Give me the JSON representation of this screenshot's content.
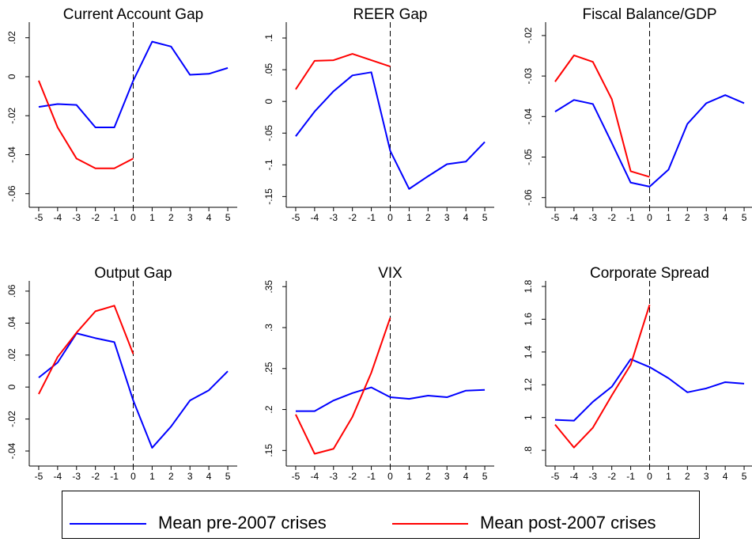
{
  "legend": {
    "entries": [
      {
        "name": "Mean pre-2007 crises",
        "color": "#0000ff"
      },
      {
        "name": "Mean post-2007 crises",
        "color": "#ff0000"
      }
    ]
  },
  "chart_data": [
    {
      "type": "line",
      "title": "Current Account Gap",
      "x": [
        -5,
        -4,
        -3,
        -2,
        -1,
        0,
        1,
        2,
        3,
        4,
        5
      ],
      "xlim": [
        -5.5,
        5.5
      ],
      "xticks": [
        -5,
        -4,
        -3,
        -2,
        -1,
        0,
        1,
        2,
        3,
        4,
        5
      ],
      "xline": 0,
      "ylim": [
        -0.067,
        0.028
      ],
      "yticks": [
        {
          "value": -0.06,
          "label": "-.06"
        },
        {
          "value": -0.04,
          "label": "-.04"
        },
        {
          "value": -0.02,
          "label": "-.02"
        },
        0,
        {
          "value": 0.02,
          "label": ".02"
        }
      ],
      "series": [
        {
          "values": [
            -0.0155,
            -0.014,
            -0.0145,
            -0.026,
            -0.026,
            -0.002,
            0.018,
            0.0155,
            0.001,
            0.0015,
            0.0045
          ]
        },
        {
          "values": [
            -0.002,
            -0.026,
            -0.042,
            -0.047,
            -0.047,
            -0.042,
            null,
            null,
            null,
            null,
            null
          ]
        }
      ]
    },
    {
      "type": "line",
      "title": "REER Gap",
      "x": [
        -5,
        -4,
        -3,
        -2,
        -1,
        0,
        1,
        2,
        3,
        4,
        5
      ],
      "xlim": [
        -5.5,
        5.5
      ],
      "xticks": [
        -5,
        -4,
        -3,
        -2,
        -1,
        0,
        1,
        2,
        3,
        4,
        5
      ],
      "xline": 0,
      "ylim": [
        -0.167,
        0.125
      ],
      "yticks": [
        {
          "value": -0.15,
          "label": "-.15"
        },
        {
          "value": -0.1,
          "label": "-.1"
        },
        {
          "value": -0.05,
          "label": "-.05"
        },
        0,
        {
          "value": 0.05,
          "label": ".05"
        },
        {
          "value": 0.1,
          "label": ".1"
        }
      ],
      "series": [
        {
          "values": [
            -0.055,
            -0.016,
            0.016,
            0.041,
            0.046,
            -0.078,
            -0.138,
            -0.118,
            -0.099,
            -0.095,
            -0.064
          ]
        },
        {
          "values": [
            0.019,
            0.064,
            0.065,
            0.075,
            0.065,
            0.055,
            null,
            null,
            null,
            null,
            null
          ]
        }
      ]
    },
    {
      "type": "line",
      "title": "Fiscal Balance/GDP",
      "x": [
        -5,
        -4,
        -3,
        -2,
        -1,
        0,
        1,
        2,
        3,
        4,
        5
      ],
      "xlim": [
        -5.5,
        5.5
      ],
      "xticks": [
        -5,
        -4,
        -3,
        -2,
        -1,
        0,
        1,
        2,
        3,
        4,
        5
      ],
      "xline": 0,
      "ylim": [
        -0.0624,
        -0.0167
      ],
      "yticks": [
        {
          "value": -0.06,
          "label": "-.06"
        },
        {
          "value": -0.05,
          "label": "-.05"
        },
        {
          "value": -0.04,
          "label": "-.04"
        },
        {
          "value": -0.03,
          "label": "-.03"
        },
        {
          "value": -0.02,
          "label": "-.02"
        }
      ],
      "series": [
        {
          "values": [
            -0.0388,
            -0.0359,
            -0.0369,
            -0.0465,
            -0.0563,
            -0.0573,
            -0.0531,
            -0.0418,
            -0.0367,
            -0.0347,
            -0.0367
          ]
        },
        {
          "values": [
            -0.0314,
            -0.0249,
            -0.0265,
            -0.0357,
            -0.0535,
            -0.0549,
            null,
            null,
            null,
            null,
            null
          ]
        }
      ]
    },
    {
      "type": "line",
      "title": "Output Gap",
      "x": [
        -5,
        -4,
        -3,
        -2,
        -1,
        0,
        1,
        2,
        3,
        4,
        5
      ],
      "xlim": [
        -5.5,
        5.5
      ],
      "xticks": [
        -5,
        -4,
        -3,
        -2,
        -1,
        0,
        1,
        2,
        3,
        4,
        5
      ],
      "xline": 0,
      "ylim": [
        -0.0494,
        0.0664
      ],
      "yticks": [
        {
          "value": -0.04,
          "label": "-.04"
        },
        {
          "value": -0.02,
          "label": "-.02"
        },
        0,
        {
          "value": 0.02,
          "label": ".02"
        },
        {
          "value": 0.04,
          "label": ".04"
        },
        {
          "value": 0.06,
          "label": ".06"
        }
      ],
      "series": [
        {
          "values": [
            0.0059,
            0.0153,
            0.0336,
            0.0306,
            0.0281,
            -0.0084,
            -0.038,
            -0.0247,
            -0.0084,
            -0.002,
            0.0099
          ]
        },
        {
          "values": [
            -0.0044,
            0.0188,
            0.034,
            0.0474,
            0.0509,
            0.0207,
            null,
            null,
            null,
            null,
            null
          ]
        }
      ]
    },
    {
      "type": "line",
      "title": "VIX",
      "x": [
        -5,
        -4,
        -3,
        -2,
        -1,
        0,
        1,
        2,
        3,
        4,
        5
      ],
      "xlim": [
        -5.5,
        5.5
      ],
      "xticks": [
        -5,
        -4,
        -3,
        -2,
        -1,
        0,
        1,
        2,
        3,
        4,
        5
      ],
      "xline": 0,
      "ylim": [
        0.131,
        0.357
      ],
      "yticks": [
        {
          "value": 0.15,
          "label": ".15"
        },
        {
          "value": 0.2,
          "label": ".2"
        },
        {
          "value": 0.25,
          "label": ".25"
        },
        {
          "value": 0.3,
          "label": ".3"
        },
        {
          "value": 0.35,
          "label": ".35"
        }
      ],
      "series": [
        {
          "values": [
            0.198,
            0.198,
            0.211,
            0.22,
            0.227,
            0.215,
            0.213,
            0.217,
            0.215,
            0.223,
            0.224
          ]
        },
        {
          "values": [
            0.194,
            0.146,
            0.152,
            0.191,
            0.245,
            0.312,
            null,
            null,
            null,
            null,
            null
          ]
        }
      ]
    },
    {
      "type": "line",
      "title": "Corporate Spread",
      "x": [
        -5,
        -4,
        -3,
        -2,
        -1,
        0,
        1,
        2,
        3,
        4,
        5
      ],
      "xlim": [
        -5.5,
        5.5
      ],
      "xticks": [
        -5,
        -4,
        -3,
        -2,
        -1,
        0,
        1,
        2,
        3,
        4,
        5
      ],
      "xline": 0,
      "ylim": [
        0.704,
        1.834
      ],
      "yticks": [
        {
          "value": 0.8,
          "label": ".8"
        },
        1,
        1.2,
        1.4,
        1.6,
        1.8
      ],
      "series": [
        {
          "values": [
            0.986,
            0.981,
            1.096,
            1.188,
            1.356,
            1.308,
            1.24,
            1.154,
            1.178,
            1.216,
            1.207
          ]
        },
        {
          "values": [
            0.957,
            0.817,
            0.938,
            1.135,
            1.322,
            1.688,
            null,
            null,
            null,
            null,
            null
          ]
        }
      ]
    }
  ]
}
